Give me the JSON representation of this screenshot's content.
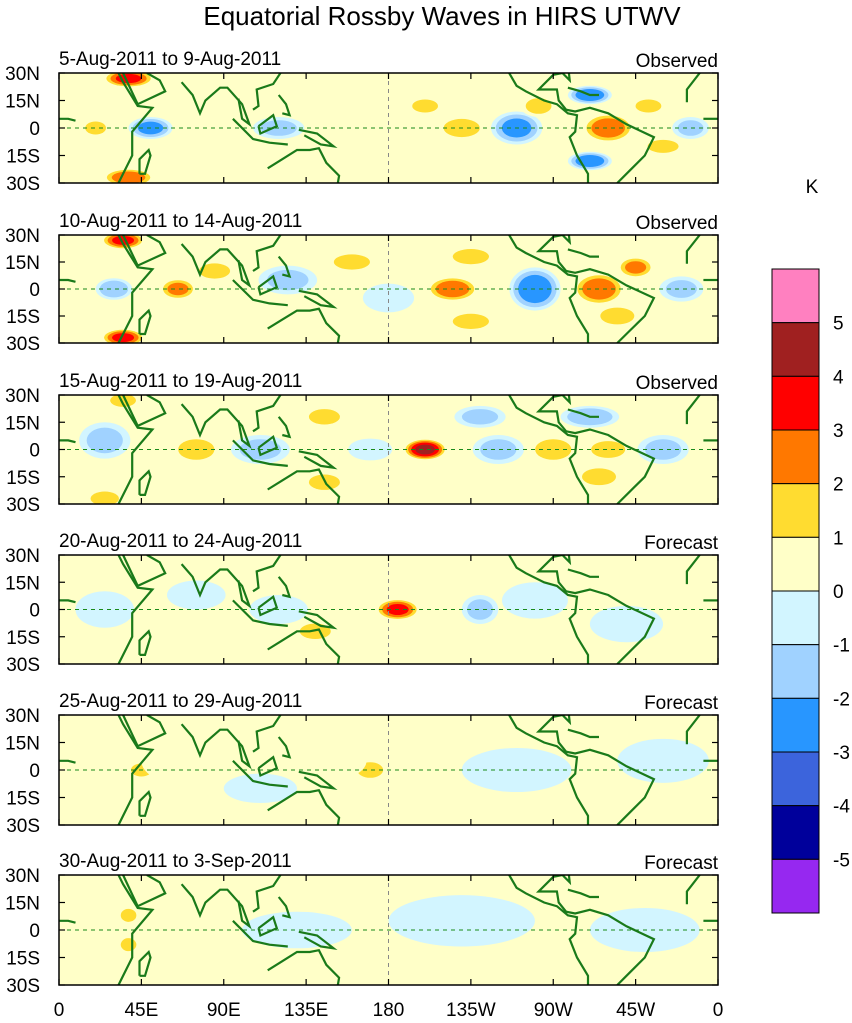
{
  "chart_data": {
    "type": "heatmap",
    "title": "Equatorial Rossby Waves in HIRS UTWV",
    "units_label": "K",
    "lat_ticks": [
      "30N",
      "15N",
      "0",
      "15S",
      "30S"
    ],
    "lon_ticks": [
      "0",
      "45E",
      "90E",
      "135E",
      "180",
      "135W",
      "90W",
      "45W",
      "0"
    ],
    "colorbar": {
      "levels": [
        "5",
        "4",
        "3",
        "2",
        "1",
        "0",
        "-1",
        "-2",
        "-3",
        "-4",
        "-5"
      ],
      "colors": [
        "#ff80c0",
        "#a02020",
        "#ff0000",
        "#ff7800",
        "#ffdc30",
        "#ffffc8",
        "#d2f5ff",
        "#a0d2ff",
        "#2896ff",
        "#3c64dc",
        "#00009b",
        "#9628f0"
      ]
    },
    "panels": [
      {
        "date_range": "5-Aug-2011 to 9-Aug-2011",
        "kind": "Observed",
        "blobs": [
          {
            "lon": 38,
            "lat": 27,
            "w": 14,
            "h": 5,
            "v": 3.5
          },
          {
            "lon": 38,
            "lat": -27,
            "w": 14,
            "h": 5,
            "v": 3
          },
          {
            "lon": 50,
            "lat": 0,
            "w": 12,
            "h": 6,
            "v": -2.5
          },
          {
            "lon": 20,
            "lat": 0,
            "w": 8,
            "h": 5,
            "v": 1.5
          },
          {
            "lon": 100,
            "lat": 10,
            "w": 12,
            "h": 6,
            "v": 1
          },
          {
            "lon": 120,
            "lat": 0,
            "w": 14,
            "h": 6,
            "v": -1.5
          },
          {
            "lon": 150,
            "lat": 5,
            "w": 14,
            "h": 6,
            "v": 1
          },
          {
            "lon": 200,
            "lat": 12,
            "w": 10,
            "h": 5,
            "v": 1.5
          },
          {
            "lon": 220,
            "lat": 0,
            "w": 14,
            "h": 7,
            "v": 1.5
          },
          {
            "lon": 250,
            "lat": 0,
            "w": 14,
            "h": 9,
            "v": -2.5
          },
          {
            "lon": 262,
            "lat": 12,
            "w": 10,
            "h": 6,
            "v": 1.5
          },
          {
            "lon": 300,
            "lat": 0,
            "w": 14,
            "h": 8,
            "v": 3
          },
          {
            "lon": 290,
            "lat": 18,
            "w": 12,
            "h": 5,
            "v": -3
          },
          {
            "lon": 290,
            "lat": -18,
            "w": 12,
            "h": 5,
            "v": -3
          },
          {
            "lon": 322,
            "lat": 12,
            "w": 10,
            "h": 5,
            "v": 1.5
          },
          {
            "lon": 330,
            "lat": -10,
            "w": 12,
            "h": 5,
            "v": 1.5
          },
          {
            "lon": 345,
            "lat": 0,
            "w": 10,
            "h": 6,
            "v": -1.5
          }
        ]
      },
      {
        "date_range": "10-Aug-2011 to 14-Aug-2011",
        "kind": "Observed",
        "blobs": [
          {
            "lon": 35,
            "lat": 27,
            "w": 12,
            "h": 5,
            "v": 3.5
          },
          {
            "lon": 35,
            "lat": -27,
            "w": 12,
            "h": 5,
            "v": 3.5
          },
          {
            "lon": 30,
            "lat": 0,
            "w": 10,
            "h": 6,
            "v": -2
          },
          {
            "lon": 65,
            "lat": 0,
            "w": 10,
            "h": 6,
            "v": 2.5
          },
          {
            "lon": 85,
            "lat": 10,
            "w": 12,
            "h": 6,
            "v": 1.5
          },
          {
            "lon": 125,
            "lat": 5,
            "w": 16,
            "h": 8,
            "v": -1.5
          },
          {
            "lon": 160,
            "lat": 15,
            "w": 14,
            "h": 6,
            "v": 1.5
          },
          {
            "lon": 180,
            "lat": -5,
            "w": 14,
            "h": 8,
            "v": -1
          },
          {
            "lon": 215,
            "lat": 0,
            "w": 14,
            "h": 7,
            "v": 3
          },
          {
            "lon": 225,
            "lat": 18,
            "w": 14,
            "h": 6,
            "v": 1.5
          },
          {
            "lon": 225,
            "lat": -18,
            "w": 14,
            "h": 6,
            "v": 1.5
          },
          {
            "lon": 260,
            "lat": 0,
            "w": 14,
            "h": 12,
            "v": -3
          },
          {
            "lon": 295,
            "lat": 0,
            "w": 14,
            "h": 9,
            "v": 3
          },
          {
            "lon": 315,
            "lat": 12,
            "w": 10,
            "h": 6,
            "v": 2.5
          },
          {
            "lon": 305,
            "lat": -15,
            "w": 12,
            "h": 6,
            "v": 2
          },
          {
            "lon": 340,
            "lat": 0,
            "w": 12,
            "h": 7,
            "v": -1.5
          }
        ]
      },
      {
        "date_range": "15-Aug-2011 to 19-Aug-2011",
        "kind": "Observed",
        "blobs": [
          {
            "lon": 25,
            "lat": 5,
            "w": 14,
            "h": 10,
            "v": -1.5
          },
          {
            "lon": 25,
            "lat": -27,
            "w": 10,
            "h": 5,
            "v": 2
          },
          {
            "lon": 35,
            "lat": 27,
            "w": 10,
            "h": 5,
            "v": 1.5
          },
          {
            "lon": 75,
            "lat": 0,
            "w": 14,
            "h": 8,
            "v": 1.5
          },
          {
            "lon": 110,
            "lat": 0,
            "w": 16,
            "h": 8,
            "v": -1.5
          },
          {
            "lon": 145,
            "lat": 18,
            "w": 12,
            "h": 6,
            "v": 1.5
          },
          {
            "lon": 145,
            "lat": -18,
            "w": 12,
            "h": 6,
            "v": 1.5
          },
          {
            "lon": 170,
            "lat": 0,
            "w": 12,
            "h": 6,
            "v": -1
          },
          {
            "lon": 200,
            "lat": 0,
            "w": 12,
            "h": 6,
            "v": 4.5
          },
          {
            "lon": 230,
            "lat": 18,
            "w": 14,
            "h": 6,
            "v": -1.5
          },
          {
            "lon": 240,
            "lat": 0,
            "w": 14,
            "h": 8,
            "v": -1.5
          },
          {
            "lon": 270,
            "lat": 0,
            "w": 14,
            "h": 8,
            "v": 1.5
          },
          {
            "lon": 290,
            "lat": 18,
            "w": 16,
            "h": 6,
            "v": -2
          },
          {
            "lon": 300,
            "lat": 0,
            "w": 12,
            "h": 6,
            "v": 2
          },
          {
            "lon": 295,
            "lat": -15,
            "w": 12,
            "h": 6,
            "v": 2
          },
          {
            "lon": 330,
            "lat": 0,
            "w": 14,
            "h": 8,
            "v": -1.5
          }
        ]
      },
      {
        "date_range": "20-Aug-2011 to 24-Aug-2011",
        "kind": "Forecast",
        "blobs": [
          {
            "lon": 25,
            "lat": 0,
            "w": 16,
            "h": 10,
            "v": -1
          },
          {
            "lon": 75,
            "lat": 8,
            "w": 16,
            "h": 8,
            "v": -0.5
          },
          {
            "lon": 140,
            "lat": 15,
            "w": 12,
            "h": 6,
            "v": 1
          },
          {
            "lon": 140,
            "lat": -12,
            "w": 12,
            "h": 6,
            "v": 1.5
          },
          {
            "lon": 120,
            "lat": 0,
            "w": 16,
            "h": 8,
            "v": -1
          },
          {
            "lon": 185,
            "lat": 0,
            "w": 12,
            "h": 6,
            "v": 3.5
          },
          {
            "lon": 230,
            "lat": 0,
            "w": 10,
            "h": 8,
            "v": -1.5
          },
          {
            "lon": 260,
            "lat": 5,
            "w": 18,
            "h": 10,
            "v": -0.5
          },
          {
            "lon": 310,
            "lat": -8,
            "w": 20,
            "h": 10,
            "v": -0.5
          }
        ]
      },
      {
        "date_range": "25-Aug-2011 to 29-Aug-2011",
        "kind": "Forecast",
        "blobs": [
          {
            "lon": 45,
            "lat": 0,
            "w": 8,
            "h": 5,
            "v": 1.5
          },
          {
            "lon": 65,
            "lat": 5,
            "w": 20,
            "h": 12,
            "v": 0.5
          },
          {
            "lon": 170,
            "lat": 0,
            "w": 10,
            "h": 6,
            "v": 1.5
          },
          {
            "lon": 150,
            "lat": 5,
            "w": 18,
            "h": 10,
            "v": 0.5
          },
          {
            "lon": 110,
            "lat": -10,
            "w": 20,
            "h": 8,
            "v": -0.5
          },
          {
            "lon": 250,
            "lat": 0,
            "w": 30,
            "h": 12,
            "v": -0.5
          },
          {
            "lon": 330,
            "lat": 5,
            "w": 25,
            "h": 12,
            "v": -0.5
          }
        ]
      },
      {
        "date_range": "30-Aug-2011 to 3-Sep-2011",
        "kind": "Forecast",
        "blobs": [
          {
            "lon": 38,
            "lat": 8,
            "w": 6,
            "h": 5,
            "v": 1.5
          },
          {
            "lon": 38,
            "lat": -8,
            "w": 6,
            "h": 5,
            "v": 1.5
          },
          {
            "lon": 60,
            "lat": 0,
            "w": 20,
            "h": 12,
            "v": 0.5
          },
          {
            "lon": 130,
            "lat": 0,
            "w": 30,
            "h": 10,
            "v": -0.5
          },
          {
            "lon": 220,
            "lat": 5,
            "w": 40,
            "h": 14,
            "v": -0.5
          },
          {
            "lon": 320,
            "lat": 0,
            "w": 30,
            "h": 12,
            "v": -0.5
          }
        ]
      }
    ]
  }
}
